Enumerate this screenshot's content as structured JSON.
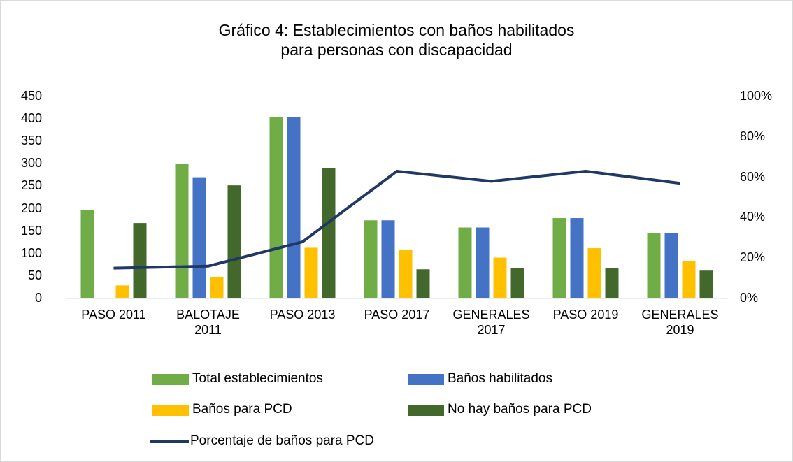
{
  "chart_data": {
    "type": "bar",
    "title": "Gráfico 4: Establecimientos con baños habilitados\npara personas con discapacidad",
    "categories": [
      "PASO 2011",
      "BALOTAJE\n2011",
      "PASO 2013",
      "PASO 2017",
      "GENERALES\n2017",
      "PASO 2019",
      "GENERALES\n2019"
    ],
    "series": [
      {
        "name": "Total establecimientos",
        "color": "#70ad47",
        "values": [
          197,
          300,
          404,
          174,
          158,
          179,
          145
        ]
      },
      {
        "name": "Baños habilitados",
        "color": "#4472c4",
        "values": [
          null,
          270,
          404,
          174,
          158,
          179,
          145
        ]
      },
      {
        "name": "Baños para PCD",
        "color": "#ffc000",
        "values": [
          29,
          48,
          113,
          108,
          91,
          112,
          83
        ]
      },
      {
        "name": "No hay baños para PCD",
        "color": "#43682b",
        "values": [
          168,
          252,
          291,
          65,
          67,
          67,
          62
        ]
      },
      {
        "name": "Porcentaje de baños para PCD",
        "color": "#203864",
        "type": "line",
        "axis": "y2",
        "values": [
          15,
          16,
          28,
          63,
          58,
          63,
          57
        ]
      }
    ],
    "ylim": [
      0,
      450
    ],
    "yticks": [
      0,
      50,
      100,
      150,
      200,
      250,
      300,
      350,
      400,
      450
    ],
    "y2lim": [
      0,
      1
    ],
    "y2ticks": [
      {
        "value": 0,
        "label": "0%"
      },
      {
        "value": 20,
        "label": "20%"
      },
      {
        "value": 40,
        "label": "40%"
      },
      {
        "value": 60,
        "label": "60%"
      },
      {
        "value": 80,
        "label": "80%"
      },
      {
        "value": 100,
        "label": "100%"
      }
    ],
    "grid": false
  }
}
